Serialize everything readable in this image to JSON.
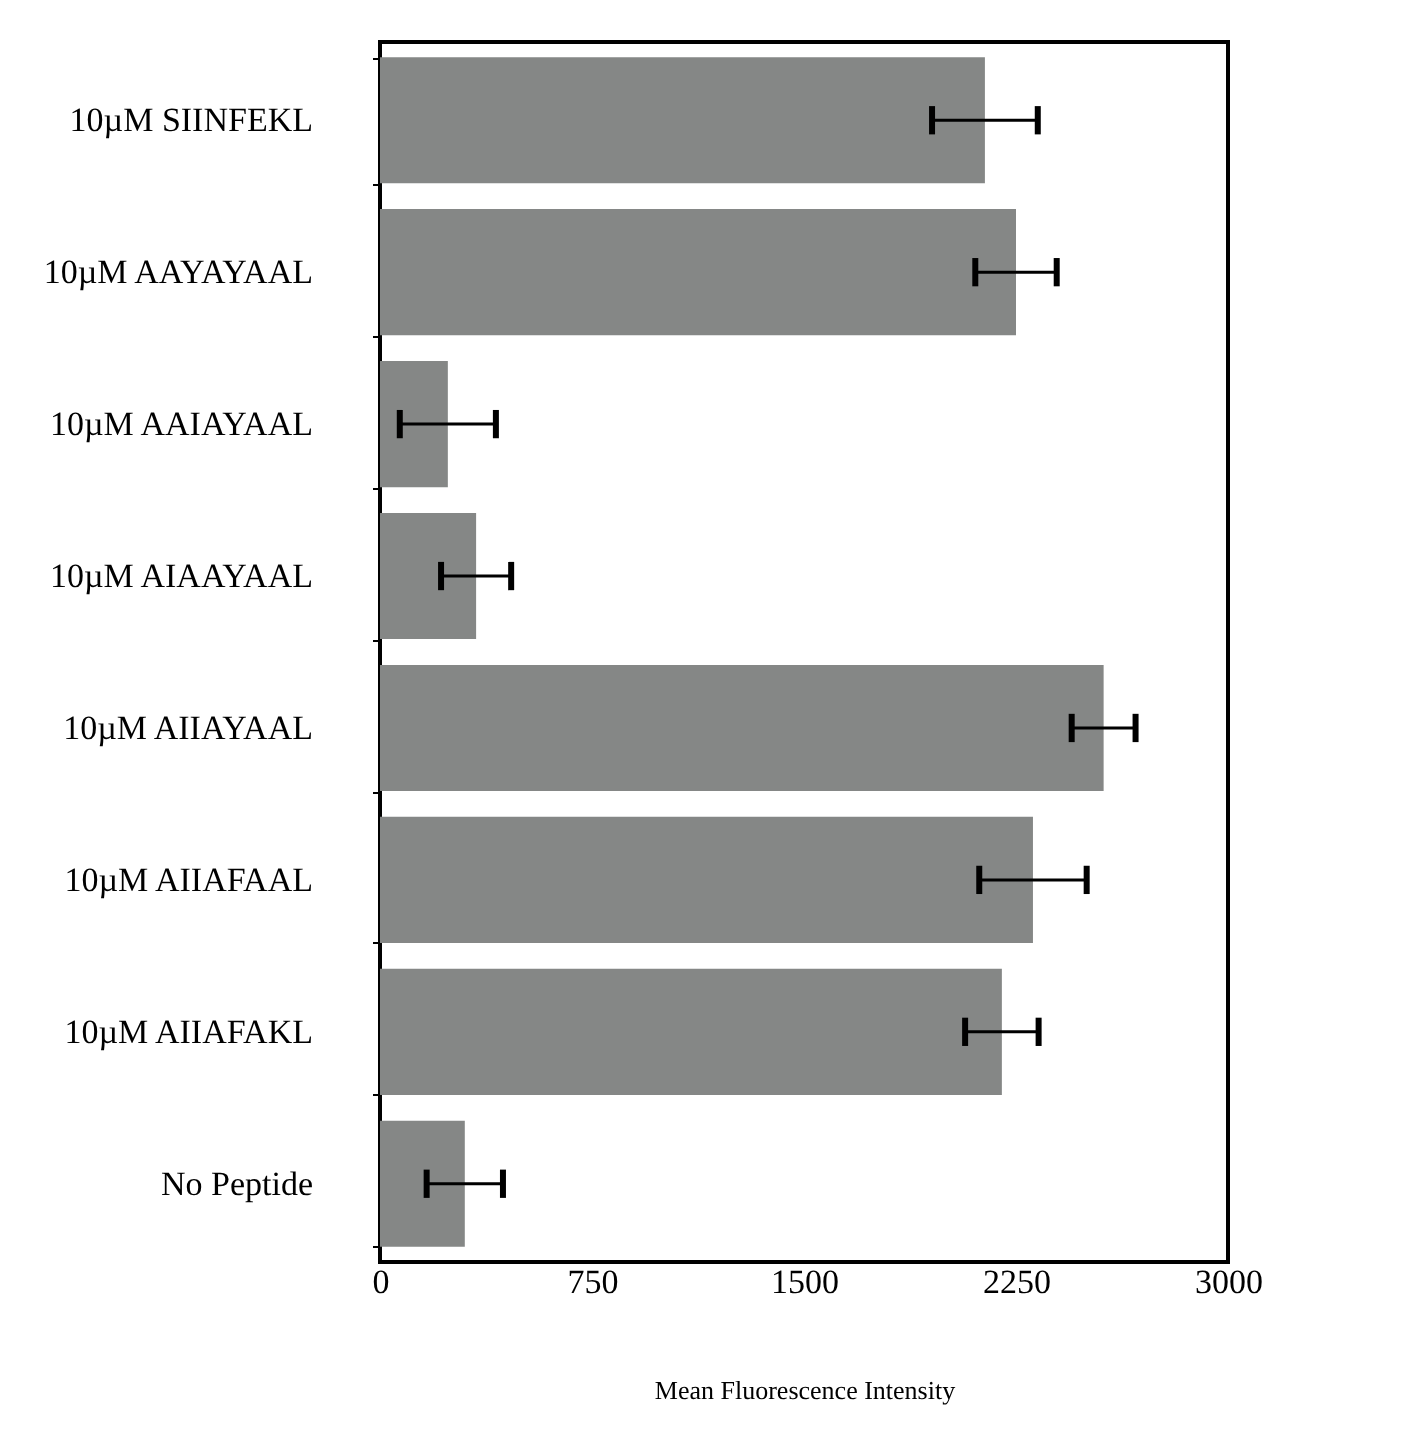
{
  "chart_data": {
    "type": "bar",
    "orientation": "horizontal",
    "xlabel": "Mean Fluorescence Intensity",
    "categories": [
      "10µM SIINFEKL",
      "10µM AAYAYAAL",
      "10µM AAIAYAAL",
      "10µM AIAAYAAL",
      "10µM AIIAYAAL",
      "10µM AIIAFAAL",
      "10µM AIIAFAKL",
      "No Peptide"
    ],
    "values": [
      2140,
      2250,
      240,
      340,
      2560,
      2310,
      2200,
      300
    ],
    "errors": [
      187,
      144,
      170,
      124,
      113,
      190,
      130,
      135
    ],
    "color": "#858786",
    "xlim": [
      0,
      3000
    ],
    "xticks": [
      0,
      750,
      1500,
      2250,
      3000
    ],
    "grid": false
  }
}
